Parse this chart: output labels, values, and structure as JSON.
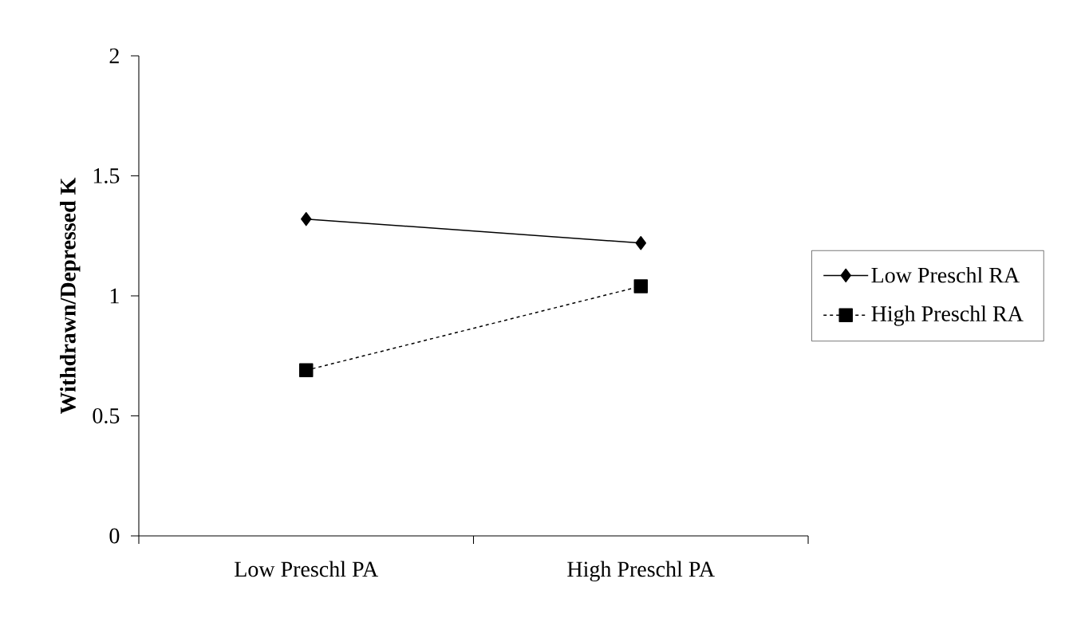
{
  "chart_data": {
    "type": "line",
    "ylabel": "Withdrawn/Depressed K",
    "categories": [
      "Low Preschl PA",
      "High Preschl PA"
    ],
    "series": [
      {
        "name": "Low Preschl RA",
        "color": "#000000",
        "marker": "diamond",
        "line_style": "solid",
        "values": [
          1.32,
          1.22
        ]
      },
      {
        "name": "High Preschl RA",
        "color": "#000000",
        "marker": "square",
        "line_style": "dashed",
        "values": [
          0.69,
          1.04
        ]
      }
    ],
    "ylim": [
      0,
      2
    ],
    "yticks": [
      0,
      0.5,
      1,
      1.5,
      2
    ],
    "grid": false,
    "legend": "right"
  }
}
